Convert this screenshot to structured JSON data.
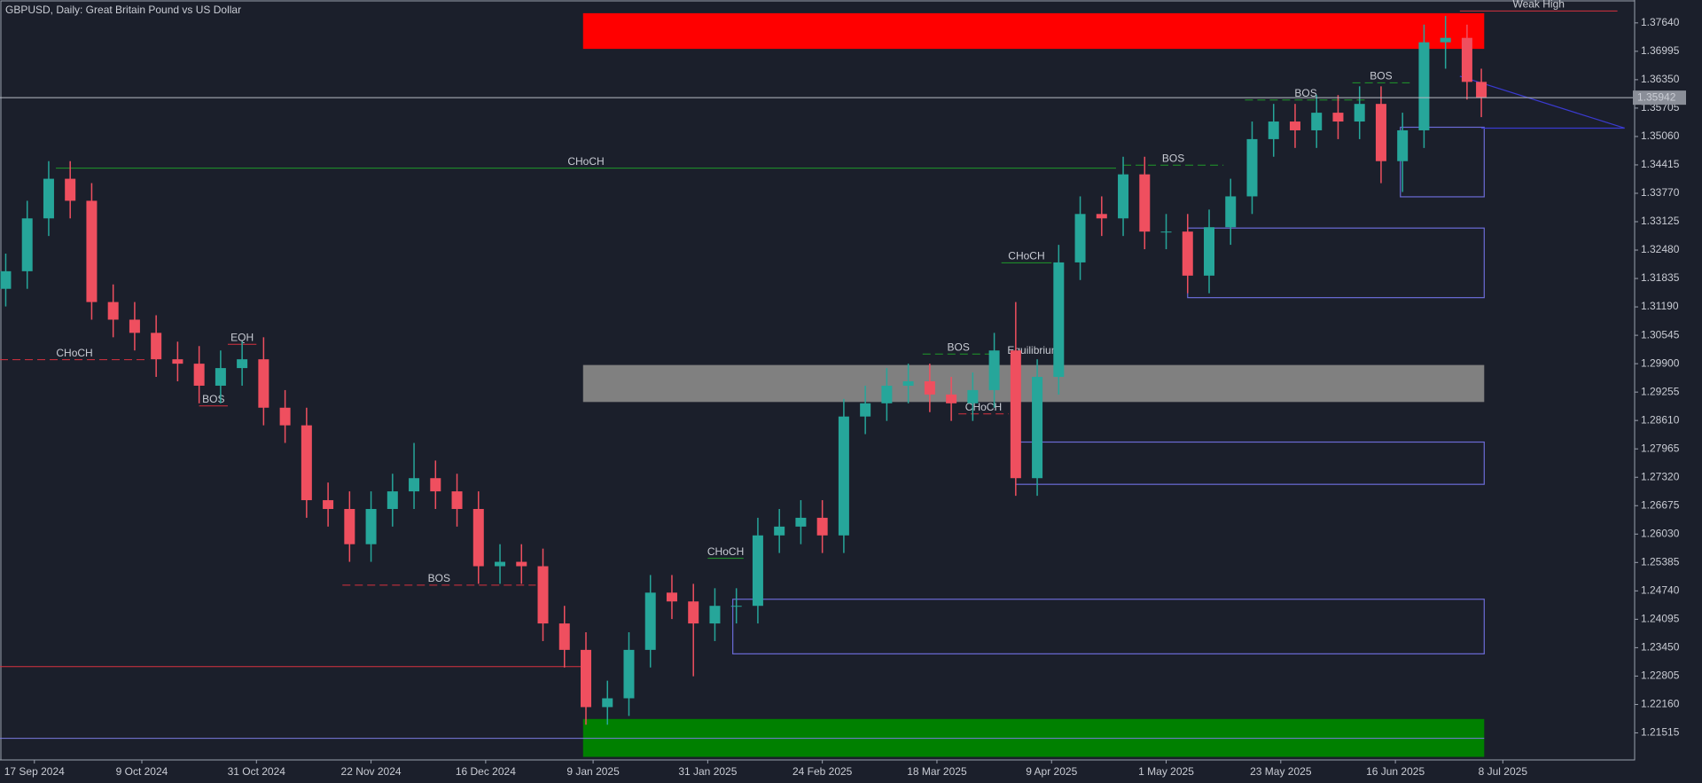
{
  "chart_data": {
    "type": "candlestick",
    "title": "GBPUSD, Daily:  Great Britain Pound vs US Dollar",
    "up_color": "#26a69a",
    "down_color": "#ef4f5f",
    "x": [
      0,
      3,
      6,
      9,
      12,
      15,
      18,
      21,
      24,
      27,
      30,
      33,
      36,
      39,
      42,
      45,
      48,
      51,
      54,
      57,
      60,
      63,
      66,
      69,
      72,
      75,
      78,
      81,
      84,
      87,
      90,
      93,
      96,
      99,
      102,
      105,
      108,
      111,
      114,
      117,
      120,
      123,
      126,
      129,
      132,
      135,
      138,
      141,
      144,
      147,
      150,
      153,
      156,
      159,
      162,
      165,
      168,
      171,
      174,
      177,
      180,
      183,
      186,
      189,
      192,
      195,
      198,
      201,
      204,
      206
    ],
    "open": [
      1.316,
      1.32,
      1.332,
      1.341,
      1.336,
      1.313,
      1.309,
      1.306,
      1.3,
      1.299,
      1.294,
      1.298,
      1.3,
      1.289,
      1.285,
      1.268,
      1.266,
      1.258,
      1.266,
      1.27,
      1.273,
      1.27,
      1.266,
      1.253,
      1.254,
      1.253,
      1.24,
      1.234,
      1.221,
      1.223,
      1.234,
      1.247,
      1.245,
      1.24,
      1.244,
      1.244,
      1.26,
      1.262,
      1.264,
      1.26,
      1.287,
      1.29,
      1.294,
      1.295,
      1.292,
      1.29,
      1.293,
      1.302,
      1.273,
      1.296,
      1.322,
      1.333,
      1.332,
      1.342,
      1.329,
      1.329,
      1.319,
      1.33,
      1.337,
      1.35,
      1.354,
      1.352,
      1.356,
      1.354,
      1.358,
      1.345,
      1.352,
      1.372,
      1.373,
      1.363
    ],
    "high": [
      1.324,
      1.336,
      1.345,
      1.345,
      1.34,
      1.317,
      1.313,
      1.31,
      1.304,
      1.303,
      1.302,
      1.304,
      1.305,
      1.293,
      1.289,
      1.272,
      1.27,
      1.27,
      1.274,
      1.281,
      1.277,
      1.274,
      1.27,
      1.258,
      1.258,
      1.257,
      1.244,
      1.238,
      1.227,
      1.238,
      1.251,
      1.251,
      1.249,
      1.248,
      1.248,
      1.264,
      1.266,
      1.268,
      1.268,
      1.291,
      1.294,
      1.298,
      1.299,
      1.299,
      1.296,
      1.297,
      1.306,
      1.313,
      1.3,
      1.326,
      1.337,
      1.337,
      1.346,
      1.346,
      1.333,
      1.333,
      1.334,
      1.341,
      1.354,
      1.358,
      1.358,
      1.36,
      1.36,
      1.362,
      1.362,
      1.356,
      1.376,
      1.378,
      1.376,
      1.366
    ],
    "low": [
      1.312,
      1.316,
      1.328,
      1.332,
      1.309,
      1.305,
      1.302,
      1.296,
      1.295,
      1.29,
      1.29,
      1.294,
      1.285,
      1.281,
      1.264,
      1.262,
      1.254,
      1.254,
      1.262,
      1.266,
      1.266,
      1.262,
      1.249,
      1.249,
      1.249,
      1.236,
      1.23,
      1.217,
      1.217,
      1.219,
      1.23,
      1.241,
      1.228,
      1.236,
      1.24,
      1.24,
      1.256,
      1.258,
      1.256,
      1.256,
      1.283,
      1.286,
      1.29,
      1.288,
      1.286,
      1.286,
      1.289,
      1.269,
      1.269,
      1.292,
      1.318,
      1.328,
      1.328,
      1.325,
      1.325,
      1.315,
      1.315,
      1.326,
      1.333,
      1.346,
      1.348,
      1.348,
      1.35,
      1.35,
      1.34,
      1.338,
      1.348,
      1.366,
      1.359,
      1.355
    ],
    "close": [
      1.32,
      1.332,
      1.341,
      1.336,
      1.313,
      1.309,
      1.306,
      1.3,
      1.299,
      1.294,
      1.298,
      1.3,
      1.289,
      1.285,
      1.268,
      1.266,
      1.258,
      1.266,
      1.27,
      1.273,
      1.27,
      1.266,
      1.253,
      1.254,
      1.253,
      1.24,
      1.234,
      1.221,
      1.223,
      1.234,
      1.247,
      1.245,
      1.24,
      1.244,
      1.244,
      1.26,
      1.262,
      1.264,
      1.26,
      1.287,
      1.29,
      1.294,
      1.295,
      1.292,
      1.29,
      1.293,
      1.302,
      1.273,
      1.296,
      1.322,
      1.333,
      1.332,
      1.342,
      1.329,
      1.329,
      1.319,
      1.33,
      1.337,
      1.35,
      1.354,
      1.352,
      1.356,
      1.354,
      1.358,
      1.345,
      1.352,
      1.372,
      1.373,
      1.363,
      1.3594
    ],
    "xlim": [
      -0.8,
      227.4
    ],
    "xticks": [
      {
        "value": 4,
        "label": "17 Sep 2024"
      },
      {
        "value": 19,
        "label": "9 Oct 2024"
      },
      {
        "value": 35,
        "label": "31 Oct 2024"
      },
      {
        "value": 51,
        "label": "22 Nov 2024"
      },
      {
        "value": 67,
        "label": "16 Dec 2024"
      },
      {
        "value": 82,
        "label": "9 Jan 2025"
      },
      {
        "value": 98,
        "label": "31 Jan 2025"
      },
      {
        "value": 114,
        "label": "24 Feb 2025"
      },
      {
        "value": 130,
        "label": "18 Mar 2025"
      },
      {
        "value": 146,
        "label": "9 Apr 2025"
      },
      {
        "value": 162,
        "label": "1 May 2025"
      },
      {
        "value": 178,
        "label": "23 May 2025"
      },
      {
        "value": 194,
        "label": "16 Jun 2025"
      },
      {
        "value": 209,
        "label": "8 Jul 2025"
      }
    ],
    "ylim": [
      1.209,
      1.3816
    ],
    "yticks": [
      1.21515,
      {
        "value": 1.2216,
        "label": "1.22160"
      },
      1.22805,
      {
        "value": 1.2345,
        "label": "1.23450"
      },
      1.24095,
      {
        "value": 1.2474,
        "label": "1.24740"
      },
      1.25385,
      {
        "value": 1.2603,
        "label": "1.26030"
      },
      1.26675,
      {
        "value": 1.2732,
        "label": "1.27320"
      },
      1.27965,
      {
        "value": 1.2861,
        "label": "1.28610"
      },
      1.29255,
      {
        "value": 1.299,
        "label": "1.29900"
      },
      1.30545,
      {
        "value": 1.3119,
        "label": "1.31190"
      },
      1.31835,
      {
        "value": 1.3248,
        "label": "1.32480"
      },
      1.33125,
      {
        "value": 1.3377,
        "label": "1.33770"
      },
      1.34415,
      {
        "value": 1.3506,
        "label": "1.35060"
      },
      1.35705,
      {
        "value": 1.3635,
        "label": "1.36350"
      },
      1.36995,
      {
        "value": 1.3764,
        "label": "1.37640"
      }
    ],
    "current_price": 1.35942,
    "zones": [
      {
        "x0": 80.6,
        "x1": 206.4,
        "top": 1.3786,
        "bottom": 1.3705,
        "color": "#ff0000",
        "filled": true
      },
      {
        "x0": 80.6,
        "x1": 206.4,
        "top": 1.2987,
        "bottom": 1.2903,
        "color": "#808080",
        "filled": true,
        "label": "Equilibrium"
      },
      {
        "x0": 80.6,
        "x1": 206.4,
        "top": 1.2183,
        "bottom": 1.2097,
        "color": "#008000",
        "filled": true
      },
      {
        "x0": 194.7,
        "x1": 206.4,
        "top": 1.3527,
        "bottom": 1.3369,
        "color": "#6b6bd6",
        "filled": false
      },
      {
        "x0": 165,
        "x1": 206.4,
        "top": 1.3298,
        "bottom": 1.314,
        "color": "#6b6bd6",
        "filled": false
      },
      {
        "x0": 141,
        "x1": 206.4,
        "top": 1.2812,
        "bottom": 1.2716,
        "color": "#6b6bd6",
        "filled": false
      },
      {
        "x0": 101.5,
        "x1": 206.4,
        "top": 1.2455,
        "bottom": 1.2331,
        "color": "#6b6bd6",
        "filled": false
      }
    ],
    "levels": [
      {
        "price": 1.3434,
        "x0": 7,
        "x1": 155,
        "color": "#1f9a2a",
        "dashed": false,
        "label": "CHoCH"
      },
      {
        "price": 1.2999,
        "x0": -0.8,
        "x1": 20,
        "color": "#d8323f",
        "dashed": true,
        "label": "CHoCH"
      },
      {
        "price": 1.3034,
        "x0": 31,
        "x1": 35,
        "color": "#d8323f",
        "dashed": false,
        "label": "EQH"
      },
      {
        "price": 1.2894,
        "x0": 27,
        "x1": 31,
        "color": "#d8323f",
        "dashed": false,
        "label": "BOS"
      },
      {
        "price": 1.2487,
        "x0": 47,
        "x1": 74,
        "color": "#d8323f",
        "dashed": true,
        "label": "BOS"
      },
      {
        "price": 1.2548,
        "x0": 98,
        "x1": 103,
        "color": "#1f9a2a",
        "dashed": false,
        "label": "CHoCH"
      },
      {
        "price": 1.3012,
        "x0": 128,
        "x1": 138,
        "color": "#1f9a2a",
        "dashed": true,
        "label": "BOS"
      },
      {
        "price": 1.2876,
        "x0": 133,
        "x1": 140,
        "color": "#d8323f",
        "dashed": true,
        "label": "CHoCH"
      },
      {
        "price": 1.3219,
        "x0": 139,
        "x1": 146,
        "color": "#1f9a2a",
        "dashed": false,
        "label": "CHoCH"
      },
      {
        "price": 1.3441,
        "x0": 156,
        "x1": 170,
        "color": "#1f9a2a",
        "dashed": true,
        "label": "BOS"
      },
      {
        "price": 1.3589,
        "x0": 173,
        "x1": 190,
        "color": "#1f9a2a",
        "dashed": true,
        "label": "BOS"
      },
      {
        "price": 1.3628,
        "x0": 188,
        "x1": 196,
        "color": "#1f9a2a",
        "dashed": true,
        "label": "BOS"
      },
      {
        "price": 1.3791,
        "x0": 203,
        "x1": 225,
        "color": "#d8323f",
        "dashed": false,
        "label": "Weak High"
      },
      {
        "price": 1.2302,
        "x0": -0.8,
        "x1": 81,
        "color": "#d8323f",
        "dashed": false
      },
      {
        "price": 1.2139,
        "x0": -0.8,
        "x1": 206.4,
        "color": "#7b7be0",
        "dashed": false
      }
    ],
    "trendlines": [
      {
        "x": [
          203,
          226
        ],
        "y": [
          1.3643,
          1.3525
        ],
        "color": "#3a3ad0"
      },
      {
        "x": [
          206,
          226
        ],
        "y": [
          1.3525,
          1.3525
        ],
        "color": "#3a3ad0"
      }
    ]
  }
}
